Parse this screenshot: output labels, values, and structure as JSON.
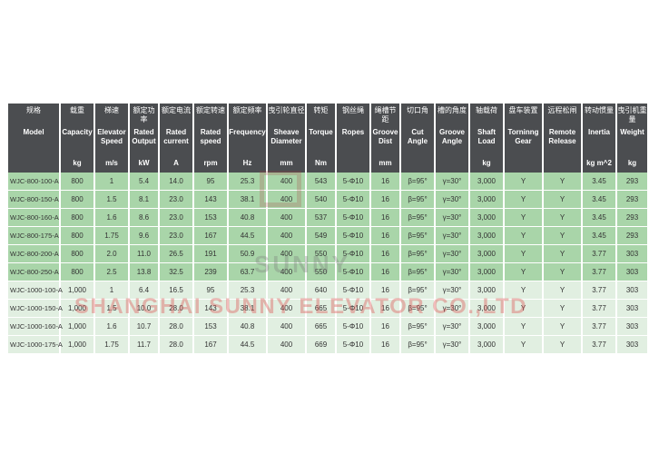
{
  "table": {
    "headers": [
      {
        "zh": "规格",
        "en": "Model",
        "unit": ""
      },
      {
        "zh": "载重",
        "en": "Capacity",
        "unit": "kg"
      },
      {
        "zh": "梯速",
        "en": "Elevator Speed",
        "unit": "m/s"
      },
      {
        "zh": "额定功率",
        "en": "Rated Output",
        "unit": "kW"
      },
      {
        "zh": "额定电流",
        "en": "Rated current",
        "unit": "A"
      },
      {
        "zh": "额定转速",
        "en": "Rated speed",
        "unit": "rpm"
      },
      {
        "zh": "额定频率",
        "en": "Frequency",
        "unit": "Hz"
      },
      {
        "zh": "曳引轮直径",
        "en": "Sheave Diameter",
        "unit": "mm"
      },
      {
        "zh": "转矩",
        "en": "Torque",
        "unit": "Nm"
      },
      {
        "zh": "钢丝绳",
        "en": "Ropes",
        "unit": ""
      },
      {
        "zh": "绳槽节距",
        "en": "Groove Dist",
        "unit": "mm"
      },
      {
        "zh": "切口角",
        "en": "Cut Angle",
        "unit": ""
      },
      {
        "zh": "槽的角度",
        "en": "Groove Angle",
        "unit": ""
      },
      {
        "zh": "轴载荷",
        "en": "Shaft Load",
        "unit": "kg"
      },
      {
        "zh": "盘车装置",
        "en": "Torninng Gear",
        "unit": ""
      },
      {
        "zh": "远程松闸",
        "en": "Remote Release",
        "unit": ""
      },
      {
        "zh": "转动惯量",
        "en": "Inertia",
        "unit": "kg m^2"
      },
      {
        "zh": "曳引机重量",
        "en": "Weight",
        "unit": "kg"
      }
    ],
    "rows": [
      [
        "WJC-800-100-A",
        "800",
        "1",
        "5.4",
        "14.0",
        "95",
        "25.3",
        "400",
        "543",
        "5-Φ10",
        "16",
        "β=95°",
        "γ=30°",
        "3,000",
        "Y",
        "Y",
        "3.45",
        "293"
      ],
      [
        "WJC-800-150-A",
        "800",
        "1.5",
        "8.1",
        "23.0",
        "143",
        "38.1",
        "400",
        "540",
        "5-Φ10",
        "16",
        "β=95°",
        "γ=30°",
        "3,000",
        "Y",
        "Y",
        "3.45",
        "293"
      ],
      [
        "WJC-800-160-A",
        "800",
        "1.6",
        "8.6",
        "23.0",
        "153",
        "40.8",
        "400",
        "537",
        "5-Φ10",
        "16",
        "β=95°",
        "γ=30°",
        "3,000",
        "Y",
        "Y",
        "3.45",
        "293"
      ],
      [
        "WJC-800-175-A",
        "800",
        "1.75",
        "9.6",
        "23.0",
        "167",
        "44.5",
        "400",
        "549",
        "5-Φ10",
        "16",
        "β=95°",
        "γ=30°",
        "3,000",
        "Y",
        "Y",
        "3.45",
        "293"
      ],
      [
        "WJC-800-200-A",
        "800",
        "2.0",
        "11.0",
        "26.5",
        "191",
        "50.9",
        "400",
        "550",
        "5-Φ10",
        "16",
        "β=95°",
        "γ=30°",
        "3,000",
        "Y",
        "Y",
        "3.77",
        "303"
      ],
      [
        "WJC-800-250-A",
        "800",
        "2.5",
        "13.8",
        "32.5",
        "239",
        "63.7",
        "400",
        "550",
        "5-Φ10",
        "16",
        "β=95°",
        "γ=30°",
        "3,000",
        "Y",
        "Y",
        "3.77",
        "303"
      ],
      [
        "WJC-1000-100-A",
        "1,000",
        "1",
        "6.4",
        "16.5",
        "95",
        "25.3",
        "400",
        "640",
        "5-Φ10",
        "16",
        "β=95°",
        "γ=30°",
        "3,000",
        "Y",
        "Y",
        "3.77",
        "303"
      ],
      [
        "WJC-1000-150-A",
        "1,000",
        "1.5",
        "10.0",
        "28.0",
        "143",
        "38.1",
        "400",
        "665",
        "5-Φ10",
        "16",
        "β=95°",
        "γ=30°",
        "3,000",
        "Y",
        "Y",
        "3.77",
        "303"
      ],
      [
        "WJC-1000-160-A",
        "1,000",
        "1.6",
        "10.7",
        "28.0",
        "153",
        "40.8",
        "400",
        "665",
        "5-Φ10",
        "16",
        "β=95°",
        "γ=30°",
        "3,000",
        "Y",
        "Y",
        "3.77",
        "303"
      ],
      [
        "WJC-1000-175-A",
        "1,000",
        "1.75",
        "11.7",
        "28.0",
        "167",
        "44.5",
        "400",
        "669",
        "5-Φ10",
        "16",
        "β=95°",
        "γ=30°",
        "3,000",
        "Y",
        "Y",
        "3.77",
        "303"
      ]
    ]
  },
  "watermark": {
    "logo_text": "SUNNY",
    "company_text": "SHANGHAI SUNNY ELEVATOR CO.,LTD"
  },
  "colors": {
    "header_bg": "#4b4d50",
    "row_800_bg": "#a9d5a9",
    "row_1000_bg": "#e1efe1"
  }
}
